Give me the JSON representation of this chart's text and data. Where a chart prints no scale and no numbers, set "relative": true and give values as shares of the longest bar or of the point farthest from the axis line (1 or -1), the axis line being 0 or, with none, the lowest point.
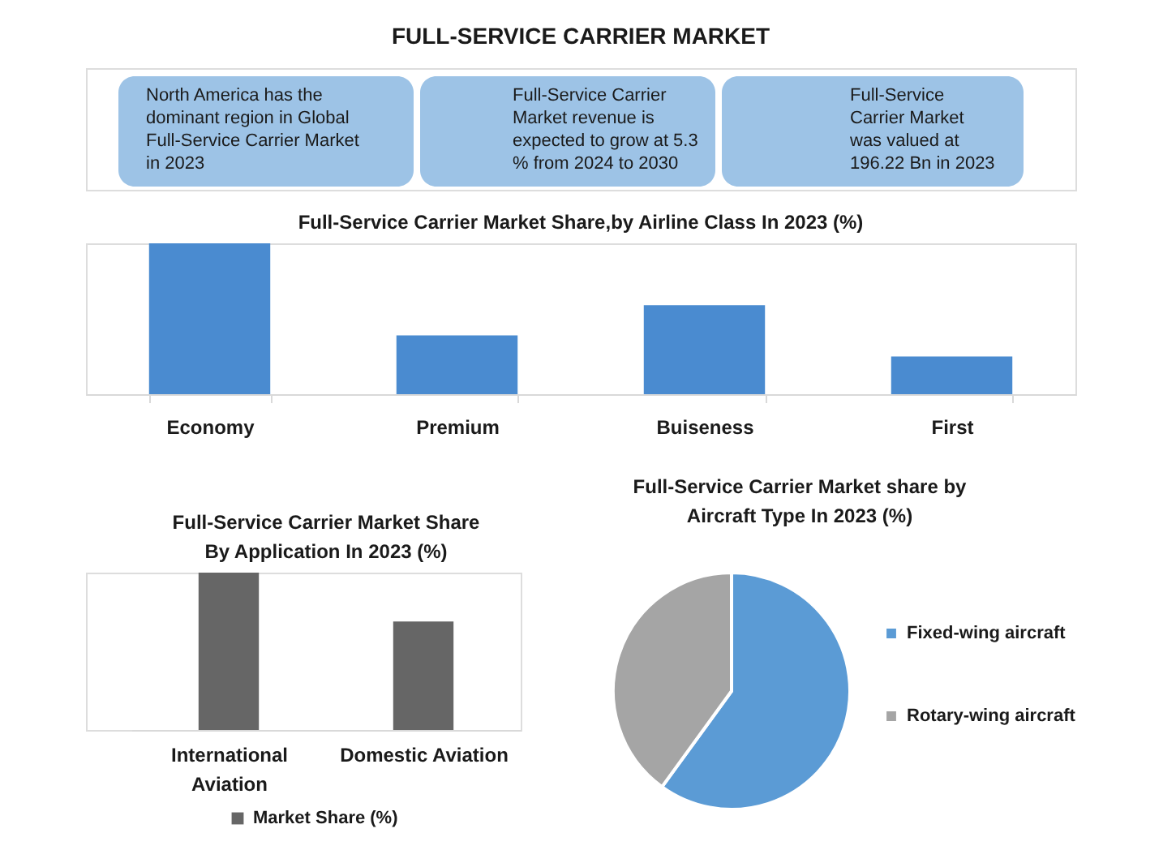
{
  "chart_data": [
    {
      "type": "other",
      "title": "FULL-SERVICE CARRIER MARKET",
      "annotations": [
        "North America has the dominant region in Global Full-Service Carrier Market in 2023",
        "Full-Service Carrier Market revenue is expected to grow at 5.3 % from 2024 to 2030",
        "Full-Service Carrier Market was valued at 196.22 Bn in 2023"
      ]
    },
    {
      "type": "bar",
      "title": "Full-Service Carrier Market Share,by Airline Class In 2023 (%)",
      "categories": [
        "Economy",
        "Premium",
        "Buiseness",
        "First"
      ],
      "values": [
        1,
        0.39,
        0.59,
        0.25
      ],
      "color": "#4a8bd0",
      "relative": true
    },
    {
      "type": "bar",
      "title": "Full-Service Carrier Market Share By Application In 2023 (%)",
      "categories": [
        "International Aviation",
        "Domestic Aviation"
      ],
      "series": [
        {
          "name": "Market Share (%)",
          "color": "#666666",
          "values": [
            1,
            0.69
          ]
        }
      ],
      "relative": true,
      "legend": "bottom"
    },
    {
      "type": "pie",
      "title": "Full-Service Carrier Market share by Aircraft Type In 2023 (%)",
      "categories": [
        "Fixed-wing aircraft",
        "Rotary-wing aircraft"
      ],
      "values": [
        60,
        40
      ],
      "colors": [
        "#5b9bd5",
        "#a5a5a5"
      ],
      "legend": "right"
    }
  ]
}
